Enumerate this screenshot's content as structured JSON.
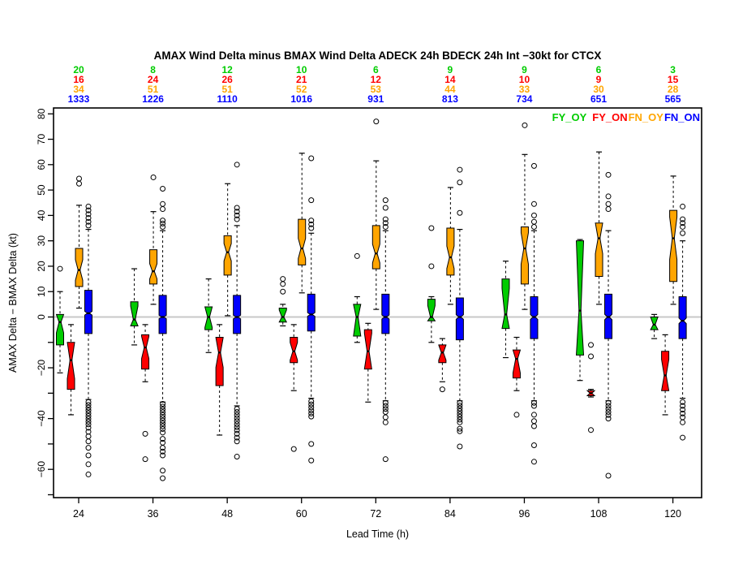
{
  "header": {
    "title": "AMAX Wind Delta minus BMAX Wind Delta ADECK 24h BDECK 24h Int −30kt for CTCX"
  },
  "legend": {
    "items": [
      {
        "label": "FY_OY",
        "color": "#00CC00"
      },
      {
        "label": "FY_ON",
        "color": "#FF0000"
      },
      {
        "label": "FN_OY",
        "color": "#FFA500"
      },
      {
        "label": "FN_ON",
        "color": "#0000FF"
      }
    ]
  },
  "chart_data": {
    "type": "boxplot",
    "title": "AMAX Wind Delta minus BMAX Wind Delta ADECK 24h BDECK 24h Int −30kt for CTCX",
    "xlabel": "Lead Time (h)",
    "ylabel": "AMAX Delta − BMAX Delta (kt)",
    "x_categories": [
      "24",
      "36",
      "48",
      "60",
      "72",
      "84",
      "96",
      "108",
      "120"
    ],
    "ylim": [
      -71,
      82
    ],
    "ytick_step": 10,
    "ytick_label_values": [
      80,
      70,
      60,
      50,
      40,
      30,
      20,
      10,
      0,
      -20,
      -40,
      -60
    ],
    "ytick_labels": [
      "80",
      "70",
      "60",
      "50",
      "40",
      "30",
      "20",
      "10",
      "0",
      "−20",
      "−40",
      "−60"
    ],
    "zero_line_value": 0,
    "zero_line_color": "#C8C8C8",
    "grid": false,
    "legend_position": "top-right",
    "series": [
      {
        "name": "FY_OY",
        "color": "#00CC00",
        "counts": [
          20,
          8,
          12,
          10,
          6,
          9,
          9,
          6,
          3
        ],
        "boxes": [
          {
            "lo": -22,
            "q1": -11,
            "med": -2,
            "q3": 1,
            "hi": 10,
            "out": [
              19
            ]
          },
          {
            "lo": -11,
            "q1": -3.5,
            "med": -1,
            "q3": 6,
            "hi": 19,
            "out": []
          },
          {
            "lo": -14,
            "q1": -5,
            "med": 0,
            "q3": 4,
            "hi": 15,
            "out": []
          },
          {
            "lo": -3.5,
            "q1": -2,
            "med": 0,
            "q3": 3.5,
            "hi": 5,
            "out": [
              15,
              13,
              10
            ]
          },
          {
            "lo": -10,
            "q1": -7.5,
            "med": 0,
            "q3": 5,
            "hi": 8,
            "out": [
              24
            ]
          },
          {
            "lo": -10,
            "q1": -1.5,
            "med": 0,
            "q3": 7,
            "hi": 8,
            "out": [
              35,
              20
            ]
          },
          {
            "lo": -16,
            "q1": -4.5,
            "med": 1,
            "q3": 15,
            "hi": 22,
            "out": []
          },
          {
            "lo": -25,
            "q1": -15,
            "med": 2.5,
            "q3": 30,
            "hi": 30.5,
            "out": []
          },
          {
            "lo": -8.5,
            "q1": -5,
            "med": -3,
            "q3": 0,
            "hi": 1,
            "out": []
          }
        ]
      },
      {
        "name": "FY_ON",
        "color": "#FF0000",
        "counts": [
          16,
          24,
          26,
          21,
          12,
          14,
          10,
          9,
          15
        ],
        "boxes": [
          {
            "lo": -38.5,
            "q1": -28.5,
            "med": -17,
            "q3": -10,
            "hi": -3,
            "out": []
          },
          {
            "lo": -25.5,
            "q1": -20.5,
            "med": -12,
            "q3": -7,
            "hi": -3,
            "out": [
              -46,
              -56
            ]
          },
          {
            "lo": -46.5,
            "q1": -27,
            "med": -14,
            "q3": -8,
            "hi": -3,
            "out": []
          },
          {
            "lo": -29,
            "q1": -18,
            "med": -13.5,
            "q3": -8,
            "hi": -3,
            "out": [
              -52
            ]
          },
          {
            "lo": -33.5,
            "q1": -20.5,
            "med": -13.5,
            "q3": -5,
            "hi": -2.5,
            "out": []
          },
          {
            "lo": -25.5,
            "q1": -18,
            "med": -14,
            "q3": -11,
            "hi": -8.5,
            "out": [
              -28.5
            ]
          },
          {
            "lo": -29,
            "q1": -24,
            "med": -16.5,
            "q3": -13,
            "hi": -8,
            "out": [
              -38.5
            ]
          },
          {
            "lo": -31.5,
            "q1": -31,
            "med": -30,
            "q3": -29,
            "hi": -28.5,
            "out": [
              -11,
              -15.5,
              -44.5
            ]
          },
          {
            "lo": -38.5,
            "q1": -29,
            "med": -23,
            "q3": -13.5,
            "hi": -7,
            "out": []
          }
        ]
      },
      {
        "name": "FN_OY",
        "color": "#FFA500",
        "counts": [
          34,
          51,
          51,
          52,
          53,
          44,
          33,
          30,
          28
        ],
        "boxes": [
          {
            "lo": 3.5,
            "q1": 12,
            "med": 18.5,
            "q3": 27,
            "hi": 44,
            "out": [
              52.5,
              54.5
            ]
          },
          {
            "lo": 5,
            "q1": 13,
            "med": 18,
            "q3": 26.5,
            "hi": 41.5,
            "out": [
              55
            ]
          },
          {
            "lo": 0.5,
            "q1": 16.5,
            "med": 25.5,
            "q3": 32,
            "hi": 52.5,
            "out": []
          },
          {
            "lo": 9.5,
            "q1": 20.5,
            "med": 27,
            "q3": 38.5,
            "hi": 64.5,
            "out": []
          },
          {
            "lo": 3,
            "q1": 19,
            "med": 25,
            "q3": 36,
            "hi": 61.5,
            "out": [
              77
            ]
          },
          {
            "lo": 5,
            "q1": 16.5,
            "med": 23.5,
            "q3": 35,
            "hi": 51,
            "out": []
          },
          {
            "lo": 3,
            "q1": 13,
            "med": 27,
            "q3": 35.5,
            "hi": 64,
            "out": [
              75.5
            ]
          },
          {
            "lo": 5,
            "q1": 16,
            "med": 31,
            "q3": 37,
            "hi": 65,
            "out": []
          },
          {
            "lo": 5,
            "q1": 14,
            "med": 31,
            "q3": 42,
            "hi": 55.5,
            "out": []
          }
        ]
      },
      {
        "name": "FN_ON",
        "color": "#0000FF",
        "counts": [
          1333,
          1226,
          1110,
          1016,
          931,
          813,
          734,
          651,
          565
        ],
        "boxes": [
          {
            "lo": -32.5,
            "q1": -6.5,
            "med": 1.5,
            "q3": 10.5,
            "hi": 34.5,
            "out": [
              36,
              37.5,
              39,
              40.5,
              42,
              43.5,
              -33.5,
              -34.6,
              -35.7,
              -36.8,
              -37.9,
              -39,
              -40.1,
              -41.2,
              -42.3,
              -43.6,
              -45.2,
              -47,
              -49,
              -51.5,
              -54.5,
              -58,
              -62
            ]
          },
          {
            "lo": -33.5,
            "q1": -6.5,
            "med": 0,
            "q3": 8.5,
            "hi": 34,
            "out": [
              35.5,
              36.8,
              38,
              42.5,
              44.5,
              50.5,
              -34.2,
              -35.3,
              -36.4,
              -37.5,
              -38.6,
              -39.7,
              -40.8,
              -41.9,
              -43,
              -44.1,
              -45.5,
              -48,
              -49.5,
              -51.5,
              -53,
              -54.5,
              -60.5,
              -63.5
            ]
          },
          {
            "lo": -35,
            "q1": -6.5,
            "med": 0,
            "q3": 8.5,
            "hi": 36,
            "out": [
              38.5,
              40,
              41.5,
              43,
              60,
              -36.2,
              -37.4,
              -38.6,
              -39.8,
              -41,
              -42.2,
              -43.4,
              -44.6,
              -46,
              -47.5,
              -49,
              -55
            ]
          },
          {
            "lo": -32,
            "q1": -5.5,
            "med": 1,
            "q3": 9,
            "hi": 33,
            "out": [
              35,
              36.5,
              38,
              46,
              62.5,
              -33.2,
              -34.4,
              -35.6,
              -36.8,
              -38,
              -39.2,
              -50,
              -56.5
            ]
          },
          {
            "lo": -33,
            "q1": -6.5,
            "med": 0,
            "q3": 9,
            "hi": 34,
            "out": [
              35.5,
              37,
              38.5,
              43,
              46,
              -33.8,
              -35,
              -36.2,
              -37.4,
              -39.5,
              -41.5,
              -56
            ]
          },
          {
            "lo": -33,
            "q1": -9,
            "med": 0,
            "q3": 7.5,
            "hi": 34.5,
            "out": [
              41,
              53,
              58,
              -33.8,
              -34.9,
              -36,
              -37.1,
              -38.2,
              -39.3,
              -40.4,
              -41.5,
              -44,
              -45,
              -51
            ]
          },
          {
            "lo": -33,
            "q1": -8.5,
            "med": 0,
            "q3": 8,
            "hi": 34,
            "out": [
              35.5,
              37.5,
              40,
              44.5,
              59.5,
              -33.8,
              -35,
              -38.5,
              -41,
              -43,
              -50.5,
              -57
            ]
          },
          {
            "lo": -33,
            "q1": -8.5,
            "med": 0,
            "q3": 9,
            "hi": 34,
            "out": [
              42.5,
              44.5,
              47.5,
              56,
              -33.8,
              -35,
              -36.2,
              -37.4,
              -38.6,
              -40,
              -62.5
            ]
          },
          {
            "lo": -32,
            "q1": -8.5,
            "med": -1.5,
            "q3": 8,
            "hi": 30,
            "out": [
              33,
              35.5,
              37,
              38.5,
              43.5,
              -33.5,
              -35,
              -36.5,
              -38,
              -39.5,
              -41.5,
              -47.5
            ]
          }
        ]
      }
    ]
  }
}
